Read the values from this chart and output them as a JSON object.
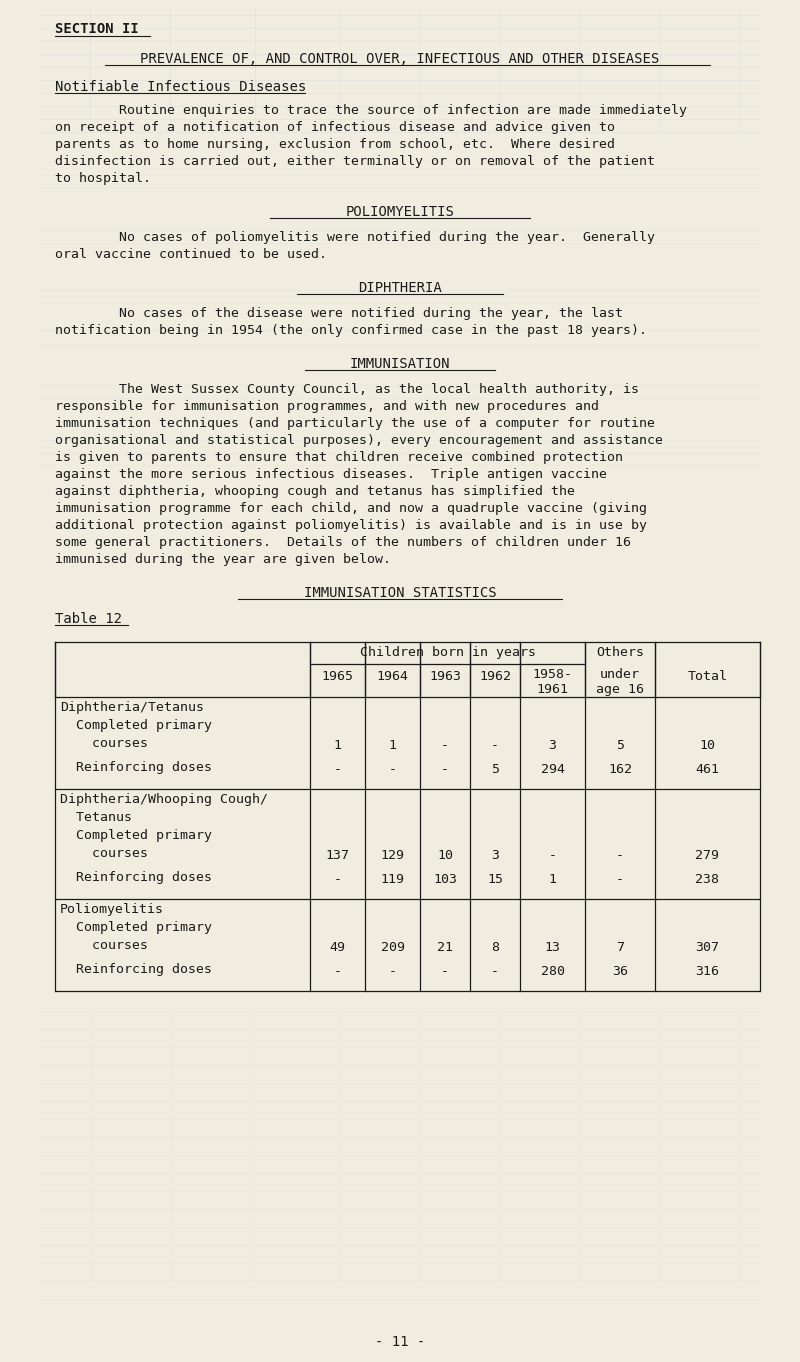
{
  "bg_color": "#f0ede0",
  "text_color": "#1a1a1a",
  "page_width": 8.0,
  "page_height": 13.62,
  "section_header": "SECTION II",
  "title": "PREVALENCE OF, AND CONTROL OVER, INFECTIOUS AND OTHER DISEASES",
  "subtitle1": "Notifiable Infectious Diseases",
  "para1_indent": "        Routine enquiries to trace the source of infection are made immediately",
  "para1_rest": [
    "on receipt of a notification of infectious disease and advice given to",
    "parents as to home nursing, exclusion from school, etc.  Where desired",
    "disinfection is carried out, either terminally or on removal of the patient",
    "to hospital."
  ],
  "heading2": "POLIOMYELITIS",
  "para2_indent": "        No cases of poliomyelitis were notified during the year.  Generally",
  "para2_rest": [
    "oral vaccine continued to be used."
  ],
  "heading3": "DIPHTHERIA",
  "para3_indent": "        No cases of the disease were notified during the year, the last",
  "para3_rest": [
    "notification being in 1954 (the only confirmed case in the past 18 years)."
  ],
  "heading4": "IMMUNISATION",
  "para4_indent": "        The West Sussex County Council, as the local health authority, is",
  "para4_rest": [
    "responsible for immunisation programmes, and with new procedures and",
    "immunisation techniques (and particularly the use of a computer for routine",
    "organisational and statistical purposes), every encouragement and assistance",
    "is given to parents to ensure that children receive combined protection",
    "against the more serious infectious diseases.  Triple antigen vaccine",
    "against diphtheria, whooping cough and tetanus has simplified the",
    "immunisation programme for each child, and now a quadruple vaccine (giving",
    "additional protection against poliomyelitis) is available and is in use by",
    "some general practitioners.  Details of the numbers of children under 16",
    "immunised during the year are given below."
  ],
  "heading5": "IMMUNISATION STATISTICS",
  "table_label": "Table 12",
  "footer": "- 11 -",
  "ghost_color": "#b8c8d8",
  "ghost_alpha": 0.3
}
